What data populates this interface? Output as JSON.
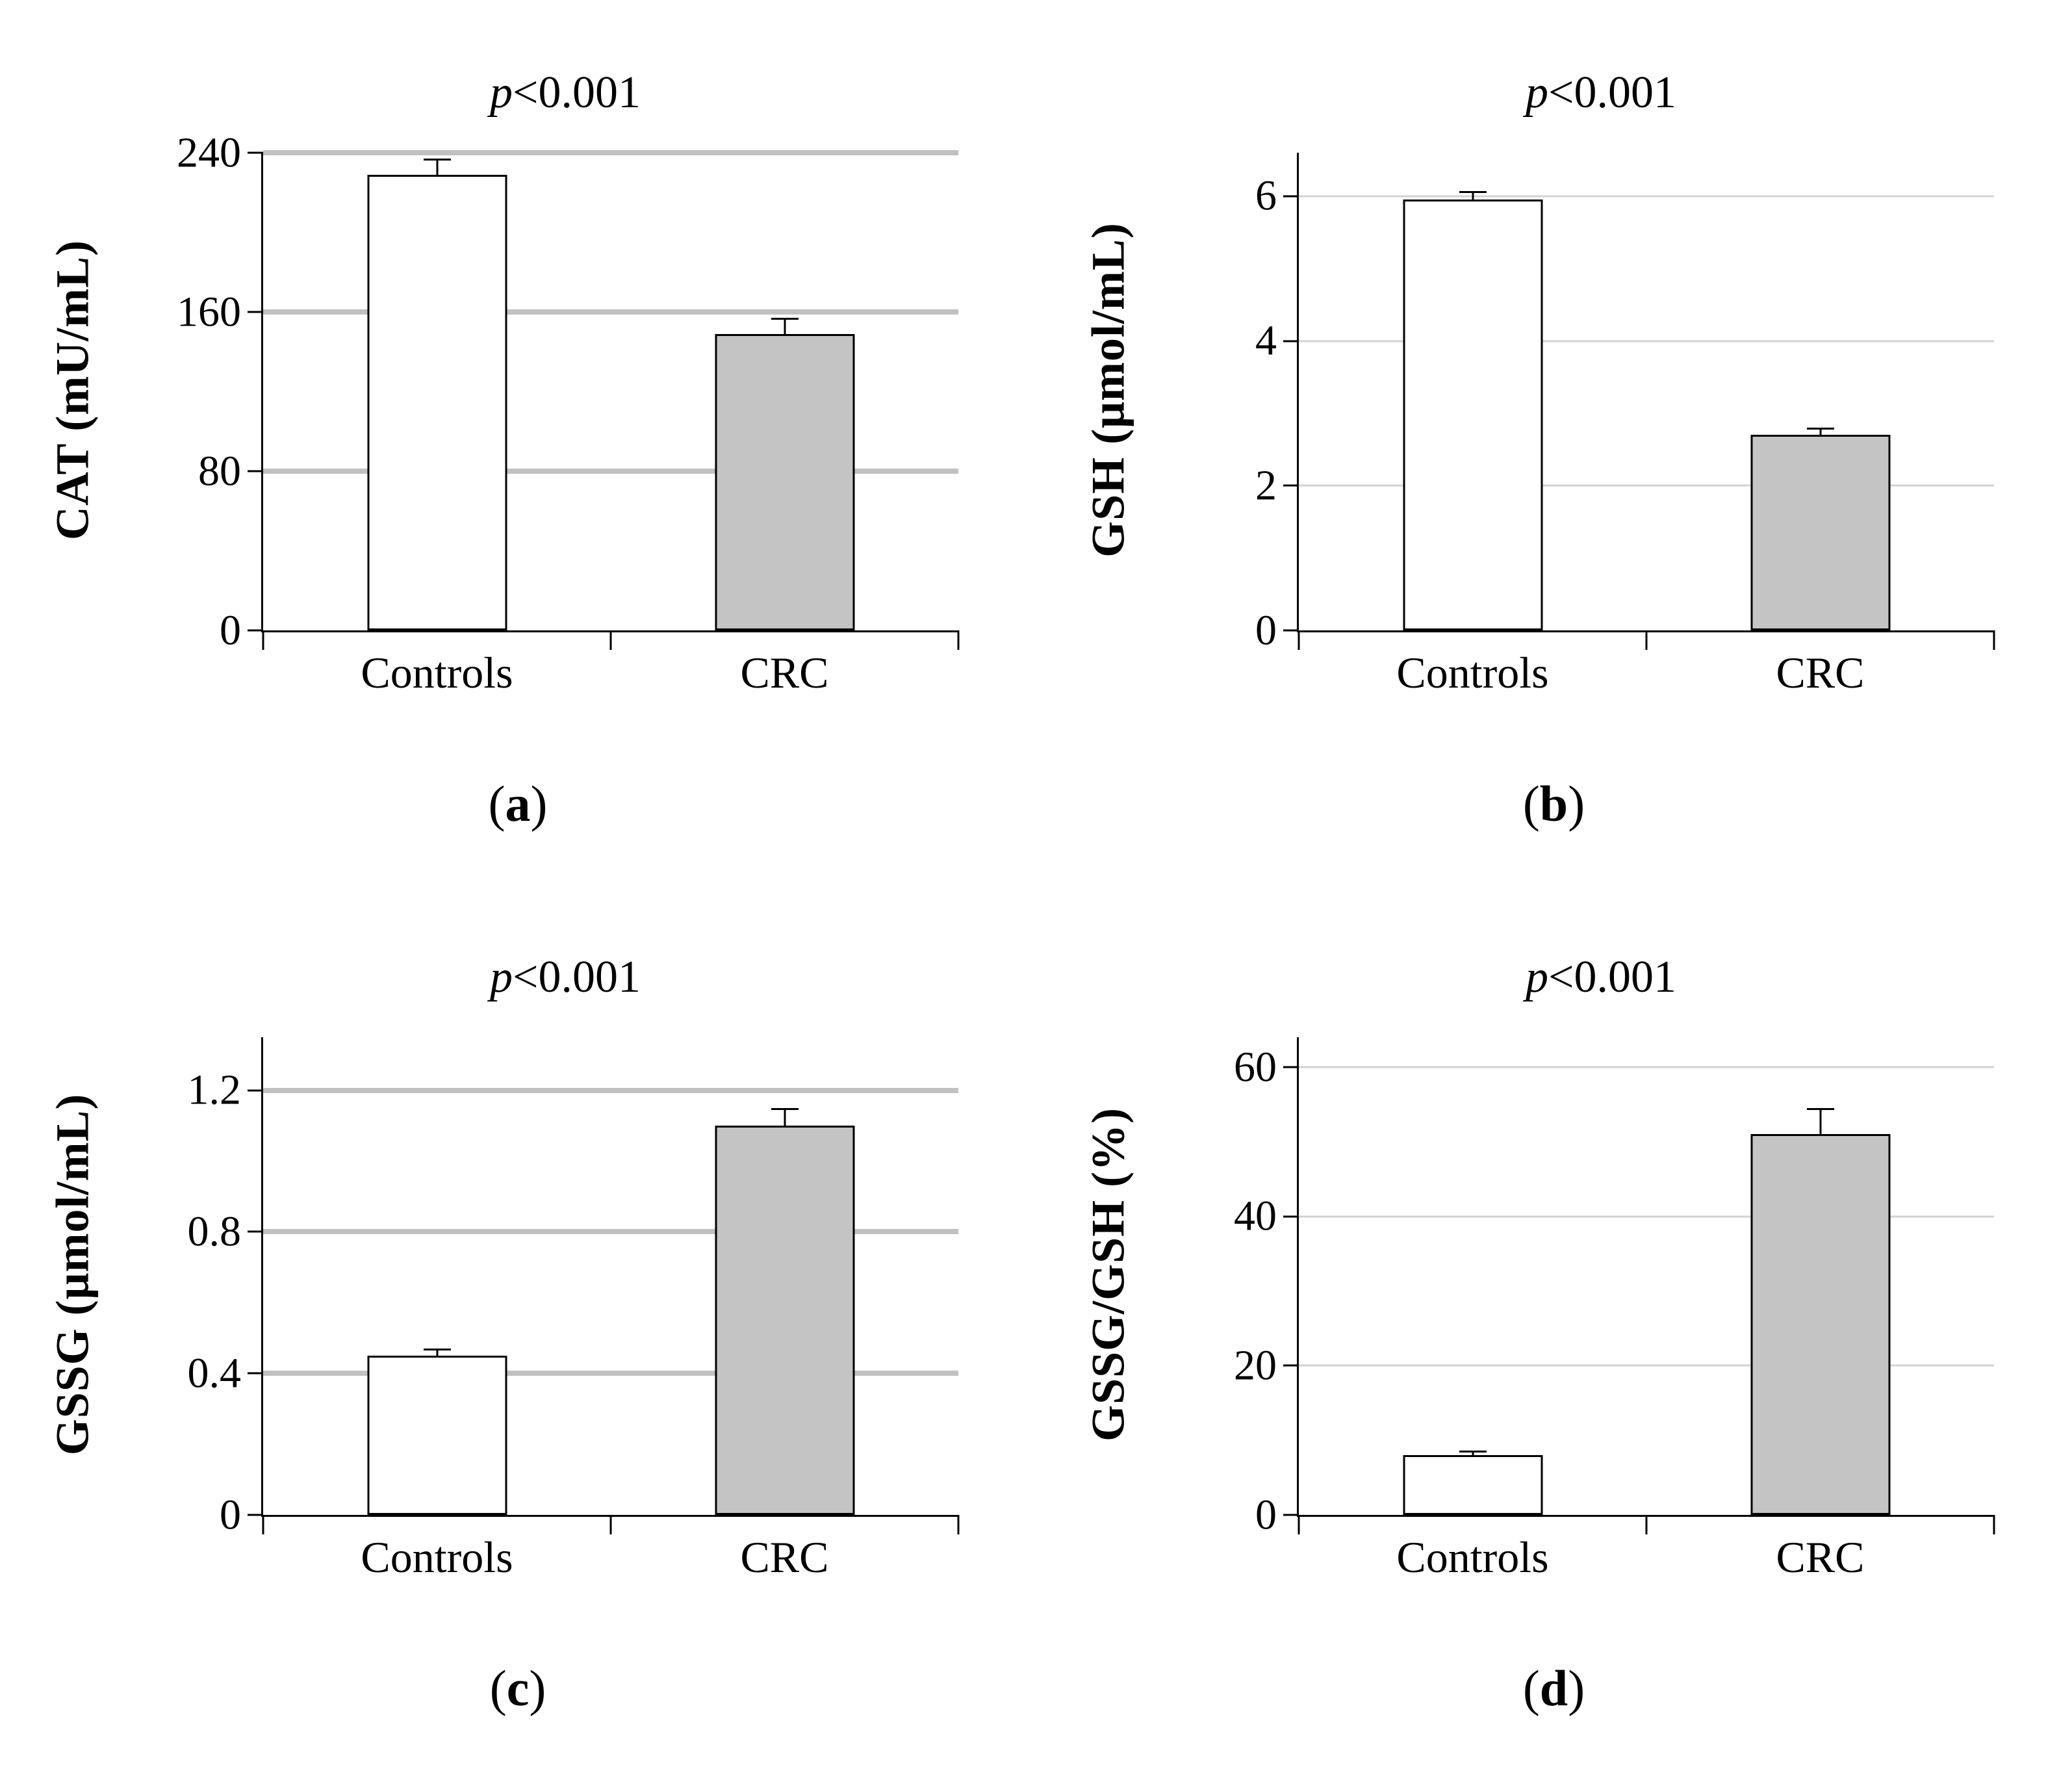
{
  "figure": {
    "background": "#ffffff",
    "axis_color": "#000000",
    "bar_fills": [
      "#ffffff",
      "#c4c4c4"
    ],
    "bar_border": "#000000",
    "error_bar_color": "#000000",
    "grid_thick_color": "#c1c1c1",
    "grid_thin_color": "#d3d3d3",
    "text_color": "#000000"
  },
  "chart_data": [
    {
      "type": "bar",
      "panel": "a",
      "title": "p<0.001",
      "title_parts": {
        "italic": "p",
        "rest": "<0.001"
      },
      "ylabel": "CAT (mU/mL)",
      "xlabel": "",
      "categories": [
        "Controls",
        "CRC"
      ],
      "values": [
        229,
        149
      ],
      "errors": [
        8,
        8
      ],
      "yticks": [
        0,
        80,
        160,
        240
      ],
      "ylim": [
        0,
        240
      ],
      "grid": "thick",
      "legend": "none",
      "panel_label": {
        "open": "(",
        "letter": "a",
        "close": ")"
      }
    },
    {
      "type": "bar",
      "panel": "b",
      "title": "p<0.001",
      "title_parts": {
        "italic": "p",
        "rest": "<0.001"
      },
      "ylabel": "GSH (μmol/mL)",
      "xlabel": "",
      "categories": [
        "Controls",
        "CRC"
      ],
      "values": [
        5.95,
        2.7
      ],
      "errors": [
        0.12,
        0.1
      ],
      "yticks": [
        0,
        2,
        4,
        6
      ],
      "ylim": [
        0,
        6.6
      ],
      "grid": "thin",
      "legend": "none",
      "panel_label": {
        "open": "(",
        "letter": "b",
        "close": ")"
      }
    },
    {
      "type": "bar",
      "panel": "c",
      "title": "p<0.001",
      "title_parts": {
        "italic": "p",
        "rest": "<0.001"
      },
      "ylabel": "GSSG (μmol/mL)",
      "xlabel": "",
      "categories": [
        "Controls",
        "CRC"
      ],
      "values": [
        0.45,
        1.1
      ],
      "errors": [
        0.02,
        0.05
      ],
      "yticks": [
        0,
        0.4,
        0.8,
        1.2
      ],
      "ylim": [
        0,
        1.35
      ],
      "grid": "thick",
      "legend": "none",
      "panel_label": {
        "open": "(",
        "letter": "c",
        "close": ")"
      }
    },
    {
      "type": "bar",
      "panel": "d",
      "title": "p<0.001",
      "title_parts": {
        "italic": "p",
        "rest": "<0.001"
      },
      "ylabel": "GSSG/GSH (%)",
      "xlabel": "",
      "categories": [
        "Controls",
        "CRC"
      ],
      "values": [
        8,
        51
      ],
      "errors": [
        0.6,
        3.5
      ],
      "yticks": [
        0,
        20,
        40,
        60
      ],
      "ylim": [
        0,
        64
      ],
      "grid": "thin",
      "legend": "none",
      "panel_label": {
        "open": "(",
        "letter": "d",
        "close": ")"
      }
    }
  ]
}
